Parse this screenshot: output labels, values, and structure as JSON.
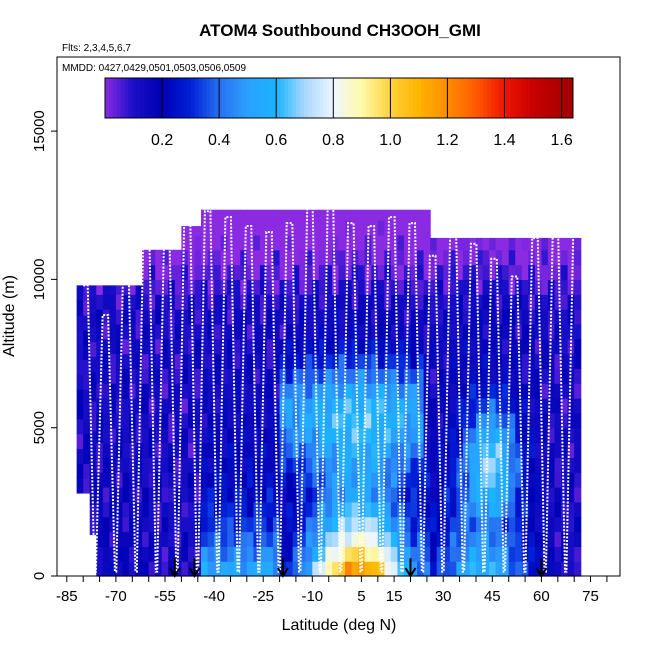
{
  "chart_data": {
    "type": "heatmap",
    "title": "ATOM4 Southbound CH3OOH_GMI",
    "flights_note": "Flts: 2,3,4,5,6,7",
    "dates_note": "MMDD: 0427,0429,0501,0503,0506,0509",
    "xlabel": "Latitude (deg N)",
    "ylabel": "Altitude (m)",
    "xlim": [
      -88,
      84
    ],
    "ylim": [
      0,
      17500
    ],
    "x_ticks": [
      -85,
      -70,
      -55,
      -40,
      -25,
      -10,
      5,
      15,
      30,
      45,
      60,
      75
    ],
    "x_tick_labels": [
      "-85",
      "-70",
      "-55",
      "-40",
      "-25",
      "-10",
      "5",
      "15",
      "30",
      "45",
      "60",
      "75"
    ],
    "y_ticks": [
      0,
      5000,
      10000,
      15000
    ],
    "y_tick_labels": [
      "0",
      "5000",
      "10000",
      "15000"
    ],
    "colorbar": {
      "range": [
        0,
        1.64
      ],
      "ticks": [
        0.2,
        0.4,
        0.6,
        0.8,
        1.0,
        1.2,
        1.4,
        1.6
      ],
      "tick_labels": [
        "0.2",
        "0.4",
        "0.6",
        "0.8",
        "1.0",
        "1.2",
        "1.4",
        "1.6"
      ],
      "stops": [
        {
          "v": 0.0,
          "c": "#8a2be2"
        },
        {
          "v": 0.1,
          "c": "#1a0fc8"
        },
        {
          "v": 0.2,
          "c": "#0000b4"
        },
        {
          "v": 0.3,
          "c": "#0020d8"
        },
        {
          "v": 0.4,
          "c": "#2870f0"
        },
        {
          "v": 0.5,
          "c": "#2aa0ff"
        },
        {
          "v": 0.6,
          "c": "#1ab4ff"
        },
        {
          "v": 0.7,
          "c": "#a8d8ff"
        },
        {
          "v": 0.8,
          "c": "#eef6ff"
        },
        {
          "v": 0.9,
          "c": "#fffaa8"
        },
        {
          "v": 1.0,
          "c": "#ffd23c"
        },
        {
          "v": 1.1,
          "c": "#ffb400"
        },
        {
          "v": 1.2,
          "c": "#ff8c00"
        },
        {
          "v": 1.3,
          "c": "#ff5a00"
        },
        {
          "v": 1.4,
          "c": "#ee1400"
        },
        {
          "v": 1.5,
          "c": "#c80000"
        },
        {
          "v": 1.64,
          "c": "#a00000"
        }
      ]
    },
    "sounding_latitudes": [
      -52,
      -46,
      -19,
      20,
      60
    ],
    "profile_top_altitudes": [
      9800,
      8800,
      10300,
      11900,
      11400,
      12500,
      12300,
      12100,
      11800,
      11600,
      11900,
      12400,
      12500,
      11900,
      11800,
      12100,
      11900,
      10800,
      12000,
      11200,
      10700,
      10100,
      11400,
      11500
    ]
  }
}
